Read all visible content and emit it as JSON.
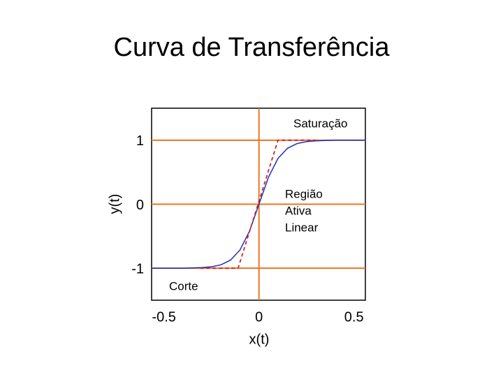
{
  "chart_data": {
    "type": "line",
    "title": "Curva de Transferência",
    "xlabel": "x(t)",
    "ylabel": "y(t)",
    "xlim": [
      -0.565,
      0.56
    ],
    "ylim": [
      -1.5,
      1.5
    ],
    "xticks": [
      -0.5,
      0,
      0.5
    ],
    "yticks": [
      -1,
      0,
      1
    ],
    "ygrid": true,
    "xgrid": [
      0
    ],
    "grid_color": "#e87722",
    "series": [
      {
        "color": "#1f2db8",
        "dash": false,
        "x": [
          -0.565,
          -0.5,
          -0.45,
          -0.4,
          -0.35,
          -0.3,
          -0.25,
          -0.2,
          -0.15,
          -0.1,
          -0.05,
          0,
          0.05,
          0.1,
          0.15,
          0.2,
          0.25,
          0.3,
          0.35,
          0.4,
          0.45,
          0.5,
          0.56
        ],
        "values": [
          -1,
          -1,
          -1,
          -1,
          -0.996,
          -0.991,
          -0.978,
          -0.947,
          -0.874,
          -0.716,
          -0.422,
          0,
          0.422,
          0.716,
          0.874,
          0.947,
          0.978,
          0.991,
          0.996,
          1,
          1,
          1,
          1
        ]
      },
      {
        "color": "#d0202a",
        "dash": true,
        "x": [
          -0.31,
          -0.11,
          0.1,
          0.3
        ],
        "values": [
          -1,
          -1,
          1,
          1
        ]
      }
    ],
    "annotations": [
      {
        "lines": [
          "Saturação"
        ]
      },
      {
        "lines": [
          "Região",
          "Ativa",
          "Linear"
        ]
      },
      {
        "lines": [
          "Corte"
        ]
      }
    ]
  }
}
